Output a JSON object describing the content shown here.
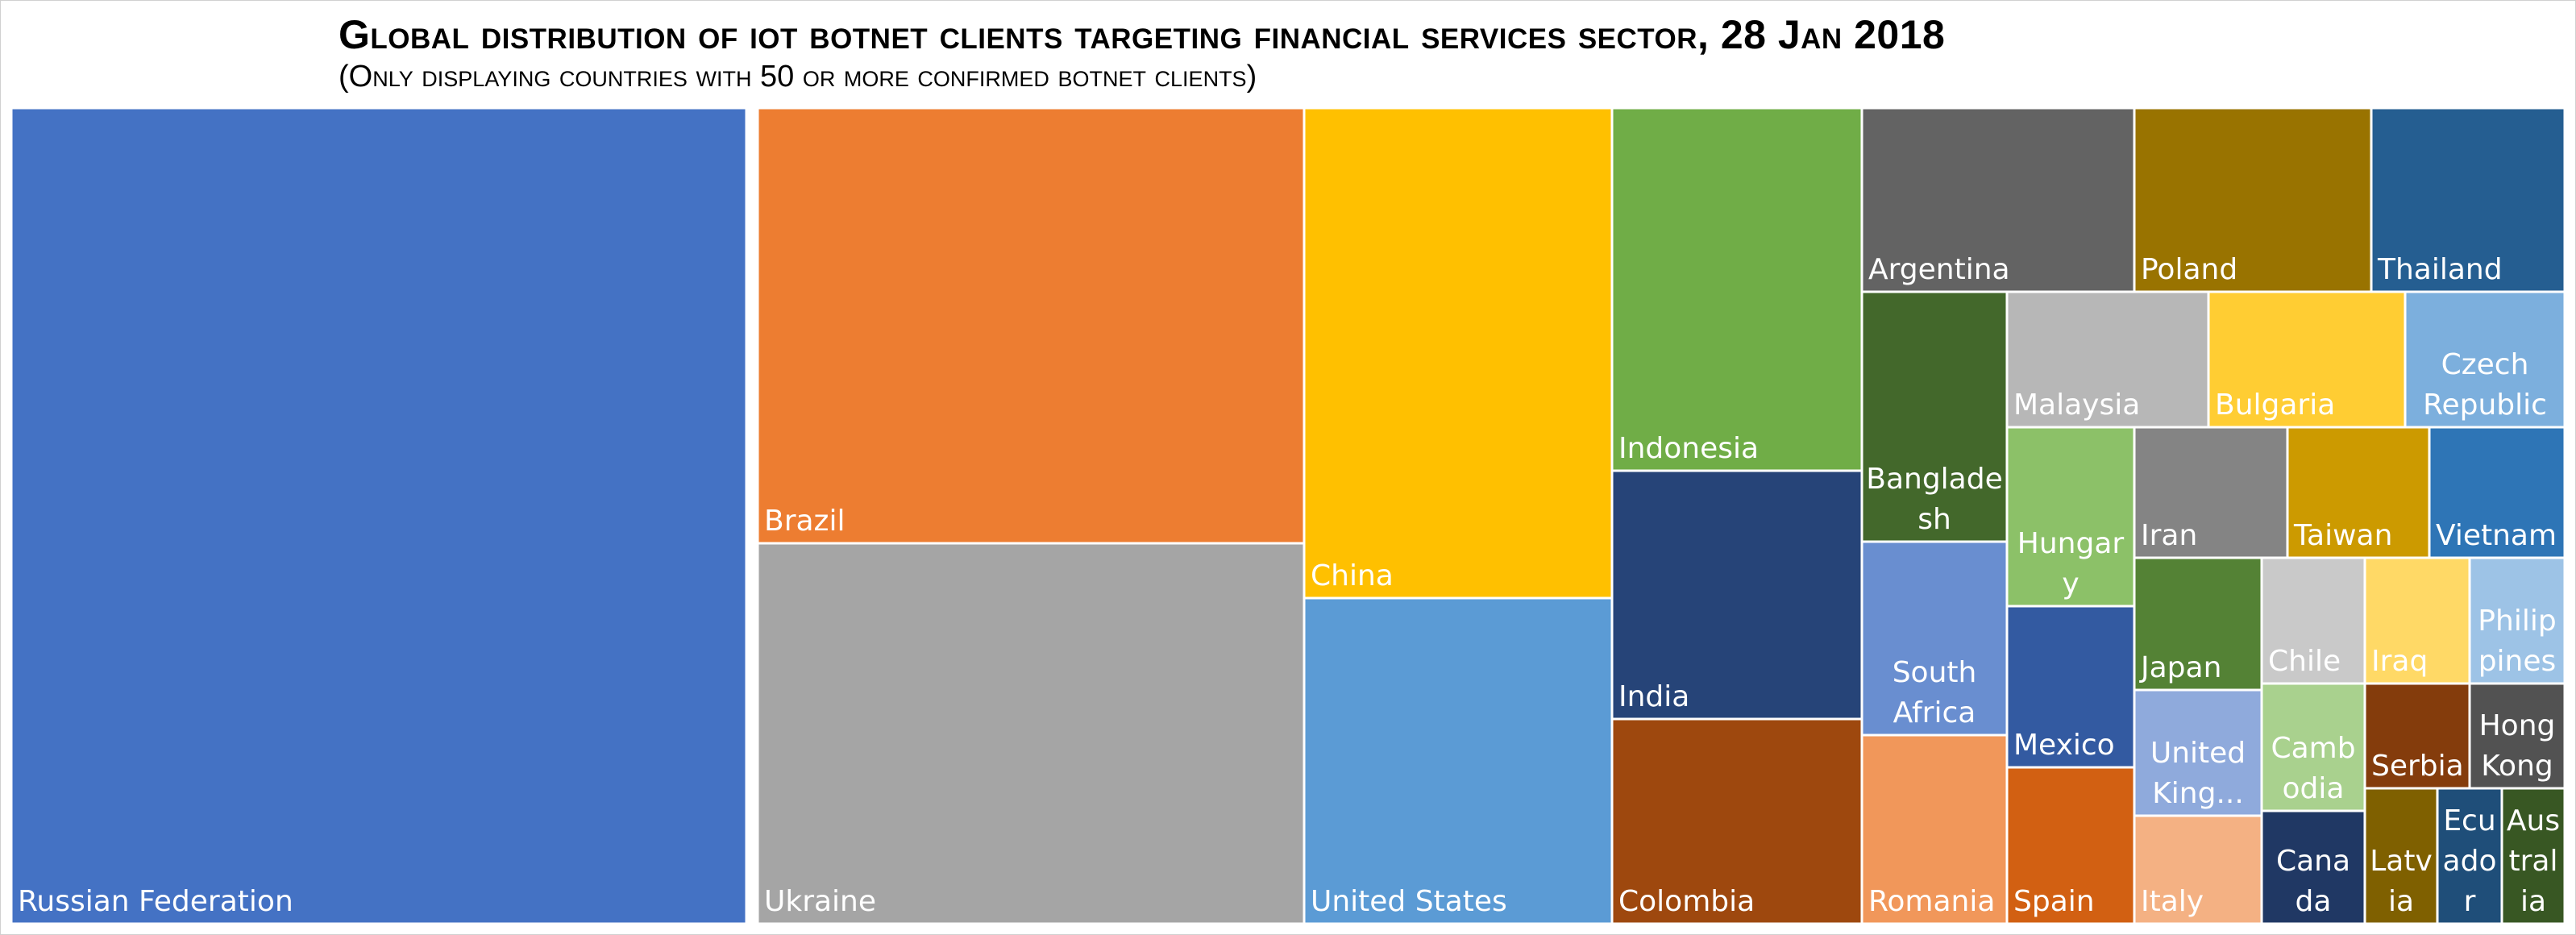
{
  "chart_data": {
    "type": "treemap",
    "title": "Global distribution of iot botnet clients targeting financial services sector, 28 Jan 2018",
    "subtitle": "(Only displaying countries with 50 or more confirmed botnet clients)",
    "legend": "none",
    "items": [
      {
        "name": "Russian Federation",
        "label_lines": [
          "Russian Federation"
        ],
        "value": 21890,
        "color": "#4472C4"
      },
      {
        "name": "Brazil",
        "label_lines": [
          "Brazil"
        ],
        "value": 8590,
        "color": "#ED7D31"
      },
      {
        "name": "Ukraine",
        "label_lines": [
          "Ukraine"
        ],
        "value": 7620,
        "color": "#A5A5A5"
      },
      {
        "name": "China",
        "label_lines": [
          "China"
        ],
        "value": 5430,
        "color": "#FFC000"
      },
      {
        "name": "United States",
        "label_lines": [
          "United States"
        ],
        "value": 3690,
        "color": "#5B9BD5"
      },
      {
        "name": "Indonesia",
        "label_lines": [
          "Indonesia"
        ],
        "value": 3220,
        "color": "#70AD47"
      },
      {
        "name": "India",
        "label_lines": [
          "India"
        ],
        "value": 2200,
        "color": "#264478"
      },
      {
        "name": "Colombia",
        "label_lines": [
          "Colombia"
        ],
        "value": 1820,
        "color": "#9E480E"
      },
      {
        "name": "Argentina",
        "label_lines": [
          "Argentina"
        ],
        "value": 1790,
        "color": "#636363"
      },
      {
        "name": "Poland",
        "label_lines": [
          "Poland"
        ],
        "value": 1570,
        "color": "#997300"
      },
      {
        "name": "Thailand",
        "label_lines": [
          "Thailand"
        ],
        "value": 1280,
        "color": "#255E91"
      },
      {
        "name": "Bangladesh",
        "label_lines": [
          "Banglade",
          "sh"
        ],
        "value": 1310,
        "color": "#43682B"
      },
      {
        "name": "South Africa",
        "label_lines": [
          "South",
          "Africa"
        ],
        "value": 1040,
        "color": "#698ED0"
      },
      {
        "name": "Romania",
        "label_lines": [
          "Romania"
        ],
        "value": 1010,
        "color": "#F1975A"
      },
      {
        "name": "Malaysia",
        "label_lines": [
          "Malaysia"
        ],
        "value": 990,
        "color": "#B7B7B7"
      },
      {
        "name": "Bulgaria",
        "label_lines": [
          "Bulgaria"
        ],
        "value": 930,
        "color": "#FFCD33"
      },
      {
        "name": "Czech Republic",
        "label_lines": [
          "Czech",
          "Republic"
        ],
        "value": 820,
        "color": "#7CAFDD"
      },
      {
        "name": "Hungary",
        "label_lines": [
          "Hungar",
          "y"
        ],
        "value": 870,
        "color": "#8CC168"
      },
      {
        "name": "Mexico",
        "label_lines": [
          "Mexico"
        ],
        "value": 760,
        "color": "#335AA1"
      },
      {
        "name": "Spain",
        "label_lines": [
          "Spain"
        ],
        "value": 770,
        "color": "#D26012"
      },
      {
        "name": "Iran",
        "label_lines": [
          "Iran"
        ],
        "value": 780,
        "color": "#848484"
      },
      {
        "name": "Taiwan",
        "label_lines": [
          "Taiwan"
        ],
        "value": 670,
        "color": "#CC9A00"
      },
      {
        "name": "Vietnam",
        "label_lines": [
          "Vietnam"
        ],
        "value": 610,
        "color": "#2E75B6"
      },
      {
        "name": "Japan",
        "label_lines": [
          "Japan"
        ],
        "value": 550,
        "color": "#548235"
      },
      {
        "name": "United Kingdom",
        "label_lines": [
          "United",
          "King..."
        ],
        "value": 550,
        "color": "#8FAADC"
      },
      {
        "name": "Italy",
        "label_lines": [
          "Italy"
        ],
        "value": 490,
        "color": "#F4B183"
      },
      {
        "name": "Chile",
        "label_lines": [
          "Chile"
        ],
        "value": 340,
        "color": "#C9C9C9"
      },
      {
        "name": "Iraq",
        "label_lines": [
          "Iraq"
        ],
        "value": 330,
        "color": "#FFD966"
      },
      {
        "name": "Philippines",
        "label_lines": [
          "Philip",
          "pines"
        ],
        "value": 330,
        "color": "#9DC3E6"
      },
      {
        "name": "Cambodia",
        "label_lines": [
          "Camb",
          "odia"
        ],
        "value": 330,
        "color": "#A9D18E"
      },
      {
        "name": "Canada",
        "label_lines": [
          "Cana",
          "da"
        ],
        "value": 340,
        "color": "#203864"
      },
      {
        "name": "Serbia",
        "label_lines": [
          "Serbia"
        ],
        "value": 300,
        "color": "#843C0C"
      },
      {
        "name": "Hong Kong",
        "label_lines": [
          "Hong",
          "Kong"
        ],
        "value": 300,
        "color": "#525252"
      },
      {
        "name": "Latvia",
        "label_lines": [
          "Latv",
          "ia"
        ],
        "value": 270,
        "color": "#7F6000"
      },
      {
        "name": "Ecuador",
        "label_lines": [
          "Ecu",
          "ado",
          "r"
        ],
        "value": 270,
        "color": "#1F4E79"
      },
      {
        "name": "Australia",
        "label_lines": [
          "Aus",
          "tral",
          "ia"
        ],
        "value": 260,
        "color": "#385723"
      }
    ]
  }
}
